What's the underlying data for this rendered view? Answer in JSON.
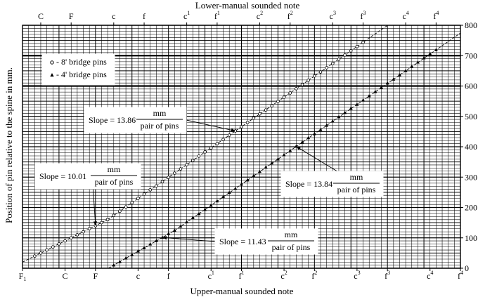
{
  "chart_data": {
    "type": "scatter",
    "top_axis": {
      "title": "Lower-manual sounded note",
      "ticks": [
        {
          "label": "C",
          "sup": ""
        },
        {
          "label": "F",
          "sup": ""
        },
        {
          "label": "c",
          "sup": ""
        },
        {
          "label": "f",
          "sup": ""
        },
        {
          "label": "c",
          "sup": "1"
        },
        {
          "label": "f",
          "sup": "1"
        },
        {
          "label": "c",
          "sup": "2"
        },
        {
          "label": "f",
          "sup": "2"
        },
        {
          "label": "c",
          "sup": "3"
        },
        {
          "label": "f",
          "sup": "3"
        },
        {
          "label": "c",
          "sup": "4"
        },
        {
          "label": "f",
          "sup": "4"
        }
      ]
    },
    "bottom_axis": {
      "title": "Upper-manual sounded note",
      "ticks": [
        {
          "label": "F",
          "sub": "1",
          "sup": ""
        },
        {
          "label": "C",
          "sub": "",
          "sup": ""
        },
        {
          "label": "F",
          "sub": "",
          "sup": ""
        },
        {
          "label": "c",
          "sub": "",
          "sup": ""
        },
        {
          "label": "f",
          "sub": "",
          "sup": ""
        },
        {
          "label": "c",
          "sub": "",
          "sup": "1"
        },
        {
          "label": "f",
          "sub": "",
          "sup": "1"
        },
        {
          "label": "c",
          "sub": "",
          "sup": "2"
        },
        {
          "label": "f",
          "sub": "",
          "sup": "2"
        },
        {
          "label": "c",
          "sub": "",
          "sup": "3"
        },
        {
          "label": "f",
          "sub": "",
          "sup": "3"
        },
        {
          "label": "c",
          "sub": "",
          "sup": "4"
        },
        {
          "label": "f",
          "sub": "",
          "sup": "4"
        }
      ]
    },
    "y_axis": {
      "title": "Position of pin relative to the spine in mm.",
      "range": [
        0,
        800
      ],
      "ticks": [
        0,
        100,
        200,
        300,
        400,
        500,
        600,
        700,
        800
      ]
    },
    "legend": {
      "placement": "top-left",
      "items": [
        {
          "marker": "●",
          "label": "- 8' bridge pins"
        },
        {
          "marker": "▲",
          "label": "- 4' bridge pins"
        }
      ]
    },
    "series": [
      {
        "name": "8' bridge pins",
        "marker": "circle",
        "segments": [
          {
            "x_range": [
              2,
              14
            ],
            "slope_label": "10.01",
            "points": [
              [
                2,
                40
              ],
              [
                3,
                50
              ],
              [
                4,
                60
              ],
              [
                5,
                70
              ],
              [
                6,
                80
              ],
              [
                7,
                90
              ],
              [
                8,
                100
              ],
              [
                9,
                110
              ],
              [
                10,
                120
              ],
              [
                11,
                130
              ],
              [
                12,
                140
              ],
              [
                13,
                150
              ],
              [
                14,
                160
              ]
            ]
          },
          {
            "x_range": [
              14,
              56
            ],
            "slope_label": "13.86",
            "points": [
              [
                14,
                160
              ],
              [
                15,
                174
              ],
              [
                16,
                188
              ],
              [
                17,
                202
              ],
              [
                18,
                216
              ],
              [
                19,
                230
              ],
              [
                20,
                244
              ],
              [
                21,
                258
              ],
              [
                22,
                271
              ],
              [
                23,
                285
              ],
              [
                24,
                299
              ],
              [
                25,
                313
              ],
              [
                26,
                327
              ],
              [
                27,
                341
              ],
              [
                28,
                355
              ],
              [
                29,
                369
              ],
              [
                30,
                383
              ],
              [
                31,
                396
              ],
              [
                32,
                410
              ],
              [
                33,
                424
              ],
              [
                34,
                438
              ],
              [
                35,
                452
              ],
              [
                36,
                466
              ],
              [
                37,
                480
              ],
              [
                38,
                494
              ],
              [
                39,
                508
              ],
              [
                40,
                521
              ],
              [
                41,
                535
              ],
              [
                42,
                549
              ],
              [
                43,
                563
              ],
              [
                44,
                577
              ],
              [
                45,
                591
              ],
              [
                46,
                605
              ],
              [
                47,
                619
              ],
              [
                48,
                633
              ],
              [
                49,
                646
              ],
              [
                50,
                660
              ],
              [
                51,
                674
              ],
              [
                52,
                688
              ],
              [
                53,
                702
              ],
              [
                54,
                716
              ],
              [
                55,
                730
              ],
              [
                56,
                744
              ]
            ]
          }
        ]
      },
      {
        "name": "4' bridge pins",
        "marker": "triangle",
        "segments": [
          {
            "x_range": [
              15,
              25
            ],
            "slope_label": "11.43",
            "points": [
              [
                15,
                10
              ],
              [
                16,
                21
              ],
              [
                17,
                33
              ],
              [
                18,
                44
              ],
              [
                19,
                56
              ],
              [
                20,
                67
              ],
              [
                21,
                79
              ],
              [
                22,
                90
              ],
              [
                23,
                101
              ],
              [
                24,
                113
              ],
              [
                25,
                124
              ]
            ]
          },
          {
            "x_range": [
              25,
              68
            ],
            "slope_label": "13.84",
            "points": [
              [
                25,
                124
              ],
              [
                26,
                138
              ],
              [
                27,
                152
              ],
              [
                28,
                166
              ],
              [
                29,
                179
              ],
              [
                30,
                193
              ],
              [
                31,
                207
              ],
              [
                32,
                221
              ],
              [
                33,
                235
              ],
              [
                34,
                249
              ],
              [
                35,
                262
              ],
              [
                36,
                276
              ],
              [
                37,
                290
              ],
              [
                38,
                304
              ],
              [
                39,
                318
              ],
              [
                40,
                332
              ],
              [
                41,
                346
              ],
              [
                42,
                359
              ],
              [
                43,
                373
              ],
              [
                44,
                387
              ],
              [
                45,
                401
              ],
              [
                46,
                415
              ],
              [
                47,
                429
              ],
              [
                48,
                442
              ],
              [
                49,
                456
              ],
              [
                50,
                470
              ],
              [
                51,
                484
              ],
              [
                52,
                498
              ],
              [
                53,
                512
              ],
              [
                54,
                526
              ],
              [
                55,
                539
              ],
              [
                56,
                553
              ],
              [
                57,
                567
              ],
              [
                58,
                581
              ],
              [
                59,
                595
              ],
              [
                60,
                609
              ],
              [
                61,
                622
              ],
              [
                62,
                636
              ],
              [
                63,
                650
              ],
              [
                64,
                664
              ],
              [
                65,
                678
              ],
              [
                66,
                692
              ],
              [
                67,
                706
              ],
              [
                68,
                719
              ]
            ]
          }
        ]
      }
    ],
    "annotations": [
      {
        "text": "Slope = 13.86",
        "numerator": "mm",
        "denominator": "pair of pins",
        "target": [
          35,
          452
        ]
      },
      {
        "text": "Slope = 10.01",
        "numerator": "mm",
        "denominator": "pair of pins",
        "target": [
          12,
          140
        ]
      },
      {
        "text": "Slope = 13.84",
        "numerator": "mm",
        "denominator": "pair of pins",
        "target": [
          45,
          401
        ]
      },
      {
        "text": "Slope = 11.43",
        "numerator": "mm",
        "denominator": "pair of pins",
        "target": [
          23,
          101
        ]
      }
    ],
    "grid": true
  }
}
